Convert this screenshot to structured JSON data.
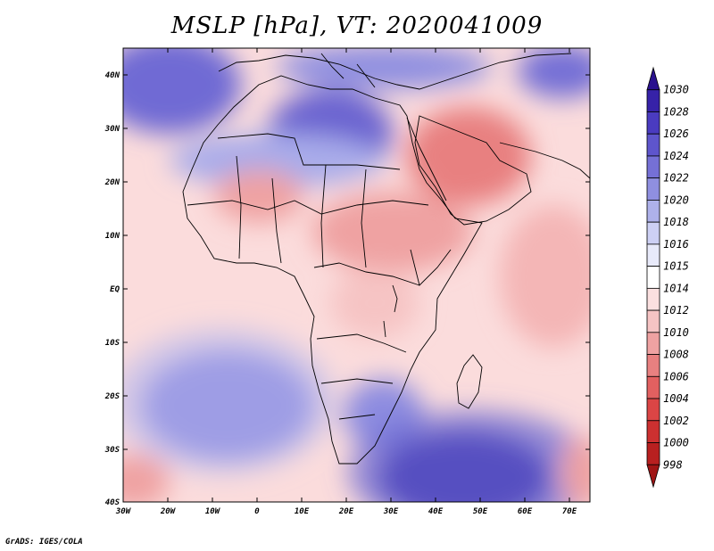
{
  "title": "MSLP [hPa], VT: 2020041009",
  "footer": "GrADS: IGES/COLA",
  "lat_labels": [
    "40N",
    "30N",
    "20N",
    "10N",
    "EQ",
    "10S",
    "20S",
    "30S",
    "40S"
  ],
  "lon_labels": [
    "30W",
    "20W",
    "10W",
    "0",
    "10E",
    "20E",
    "30E",
    "40E",
    "50E",
    "60E",
    "70E"
  ],
  "colorbar": {
    "levels": [
      "1030",
      "1028",
      "1026",
      "1024",
      "1022",
      "1020",
      "1018",
      "1016",
      "1015",
      "1014",
      "1012",
      "1010",
      "1008",
      "1006",
      "1004",
      "1002",
      "1000",
      "998"
    ],
    "colors": [
      "#2a128e",
      "#3622a8",
      "#4a3bc0",
      "#5e55cc",
      "#7570d6",
      "#8f8fe0",
      "#aeb1ea",
      "#cdd0f4",
      "#e8eafa",
      "#ffffff",
      "#fbe0e0",
      "#f6c4c4",
      "#efa2a2",
      "#e88080",
      "#e26060",
      "#db4545",
      "#cc3030",
      "#b82020",
      "#a01515"
    ]
  }
}
